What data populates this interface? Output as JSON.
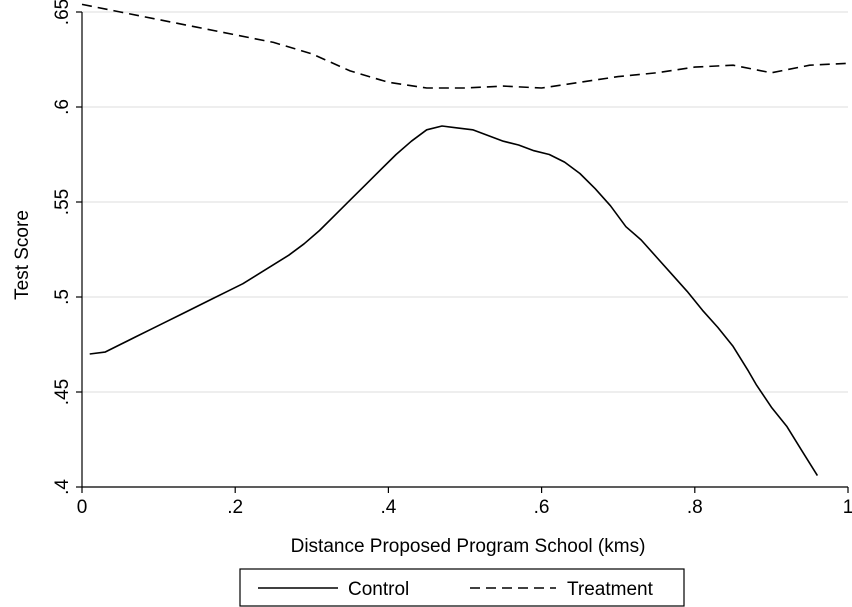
{
  "chart_data": {
    "type": "line",
    "title": "",
    "xlabel": "Distance Proposed Program School (kms)",
    "ylabel": "Test Score",
    "xlim": [
      0,
      1
    ],
    "ylim": [
      0.4,
      0.65
    ],
    "x_ticks": [
      0,
      0.2,
      0.4,
      0.6,
      0.8,
      1
    ],
    "x_tick_labels": [
      "0",
      ".2",
      ".4",
      ".6",
      ".8",
      "1"
    ],
    "y_ticks": [
      0.4,
      0.45,
      0.5,
      0.55,
      0.6,
      0.65
    ],
    "y_tick_labels": [
      ".4",
      ".45",
      ".5",
      ".55",
      ".6",
      ".65"
    ],
    "grid": true,
    "legend_position": "bottom",
    "series": [
      {
        "name": "Control",
        "line_style": "solid",
        "color": "#000000",
        "x": [
          0.01,
          0.03,
          0.05,
          0.07,
          0.09,
          0.11,
          0.13,
          0.15,
          0.17,
          0.19,
          0.21,
          0.23,
          0.25,
          0.27,
          0.29,
          0.31,
          0.33,
          0.35,
          0.37,
          0.39,
          0.41,
          0.43,
          0.45,
          0.47,
          0.49,
          0.51,
          0.53,
          0.55,
          0.57,
          0.59,
          0.61,
          0.63,
          0.65,
          0.67,
          0.69,
          0.71,
          0.73,
          0.75,
          0.77,
          0.79,
          0.81,
          0.83,
          0.85,
          0.87,
          0.88,
          0.9,
          0.92,
          0.94,
          0.96
        ],
        "y": [
          0.47,
          0.471,
          0.475,
          0.479,
          0.483,
          0.487,
          0.491,
          0.495,
          0.499,
          0.503,
          0.507,
          0.512,
          0.517,
          0.522,
          0.528,
          0.535,
          0.543,
          0.551,
          0.559,
          0.567,
          0.575,
          0.582,
          0.588,
          0.59,
          0.589,
          0.588,
          0.585,
          0.582,
          0.58,
          0.577,
          0.575,
          0.571,
          0.565,
          0.557,
          0.548,
          0.537,
          0.53,
          0.521,
          0.512,
          0.503,
          0.493,
          0.484,
          0.474,
          0.461,
          0.454,
          0.442,
          0.432,
          0.419,
          0.406
        ]
      },
      {
        "name": "Treatment",
        "line_style": "dashed",
        "color": "#000000",
        "x": [
          0.0,
          0.05,
          0.1,
          0.15,
          0.2,
          0.25,
          0.3,
          0.35,
          0.4,
          0.45,
          0.5,
          0.55,
          0.6,
          0.65,
          0.7,
          0.75,
          0.8,
          0.85,
          0.9,
          0.95,
          1.0
        ],
        "y": [
          0.654,
          0.65,
          0.646,
          0.642,
          0.638,
          0.634,
          0.628,
          0.619,
          0.613,
          0.61,
          0.61,
          0.611,
          0.61,
          0.613,
          0.616,
          0.618,
          0.621,
          0.622,
          0.618,
          0.622,
          0.623
        ]
      }
    ]
  }
}
